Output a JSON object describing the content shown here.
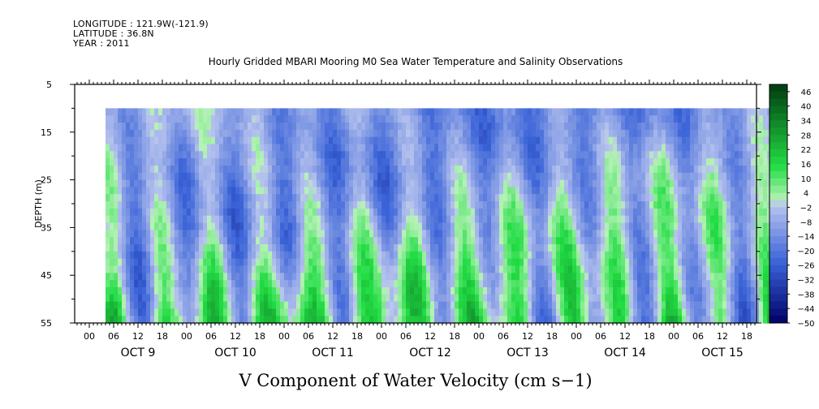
{
  "header": {
    "longitude": "LONGITUDE : 121.9W(-121.9)",
    "latitude": "LATITUDE : 36.8N",
    "year": "YEAR : 2011"
  },
  "chart_data": {
    "type": "heatmap",
    "title": "Hourly Gridded MBARI Mooring M0 Sea Water Temperature and Salinity Observations",
    "xlabel": "",
    "ylabel": "DEPTH (m)",
    "colorbar_label": "V Component of Water Velocity (cm s−1)",
    "y_ticks": [
      "5",
      "15",
      "25",
      "35",
      "45",
      "55"
    ],
    "y_range": [
      5,
      55
    ],
    "y_inverted": true,
    "data_depth_range": [
      10,
      55
    ],
    "x_hour_labels": [
      "00",
      "06",
      "12",
      "18",
      "00",
      "06",
      "12",
      "18",
      "00",
      "06",
      "12",
      "18",
      "00",
      "06",
      "12",
      "18",
      "00",
      "06",
      "12",
      "18",
      "00",
      "06",
      "12",
      "18",
      "00",
      "06",
      "12",
      "18"
    ],
    "x_day_labels": [
      "OCT  9",
      "OCT 10",
      "OCT 11",
      "OCT 12",
      "OCT 13",
      "OCT 14",
      "OCT 15"
    ],
    "x_range_hours": [
      0,
      168
    ],
    "data_start_hour": 4,
    "colorbar_ticks": [
      "46",
      "40",
      "34",
      "28",
      "22",
      "16",
      "10",
      "4",
      "−2",
      "−8",
      "−14",
      "−20",
      "−26",
      "−32",
      "−38",
      "−44",
      "−50"
    ],
    "colorbar_range": [
      -50,
      49
    ],
    "colors": {
      "negative_strong": "#000066",
      "negative_mid": "#3a63d8",
      "negative_weak": "#b8c4ee",
      "positive_weak": "#b6f2b6",
      "positive_mid": "#22dd44",
      "positive_strong": "#003b10"
    }
  }
}
